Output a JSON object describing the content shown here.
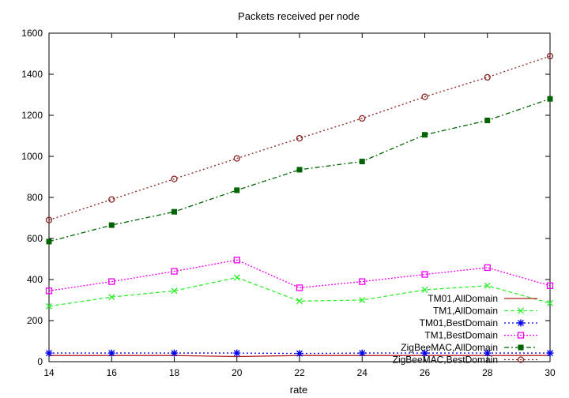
{
  "chart_data": {
    "type": "line",
    "title": "Packets received per node",
    "xlabel": "rate",
    "ylabel": "",
    "xlim": [
      14,
      30
    ],
    "ylim": [
      0,
      1600
    ],
    "xticks": [
      14,
      16,
      18,
      20,
      22,
      24,
      26,
      28,
      30
    ],
    "yticks": [
      0,
      200,
      400,
      600,
      800,
      1000,
      1200,
      1400,
      1600
    ],
    "x": [
      14,
      16,
      18,
      20,
      22,
      24,
      26,
      28,
      30
    ],
    "grid": false,
    "legend_position": "bottom-right",
    "series": [
      {
        "name": "TM01,AllDomain",
        "values": [
          30,
          30,
          30,
          25,
          30,
          30,
          30,
          30,
          30
        ],
        "color": "#b21f1f",
        "dash": "",
        "marker": "none"
      },
      {
        "name": "TM1,AllDomain",
        "values": [
          270,
          315,
          345,
          410,
          295,
          300,
          350,
          370,
          285
        ],
        "color": "#33ee33",
        "dash": "5,3",
        "marker": "x"
      },
      {
        "name": "TM01,BestDomain",
        "values": [
          42,
          42,
          42,
          42,
          40,
          42,
          42,
          42,
          42
        ],
        "color": "#0000ee",
        "dash": "2,3",
        "marker": "star"
      },
      {
        "name": "TM1,BestDomain",
        "values": [
          345,
          390,
          440,
          495,
          360,
          390,
          425,
          458,
          370
        ],
        "color": "#ee00ee",
        "dash": "2,2",
        "marker": "square"
      },
      {
        "name": "ZigBeeMAC,AllDomain",
        "values": [
          585,
          665,
          730,
          835,
          935,
          975,
          1105,
          1175,
          1280
        ],
        "color": "#006400",
        "dash": "6,3,2,3",
        "marker": "filled-square"
      },
      {
        "name": "ZigBeeMAC,BestDomain",
        "values": [
          690,
          790,
          890,
          990,
          1088,
          1185,
          1290,
          1385,
          1488
        ],
        "color": "#8b2323",
        "dash": "2,3",
        "marker": "circle"
      }
    ]
  }
}
